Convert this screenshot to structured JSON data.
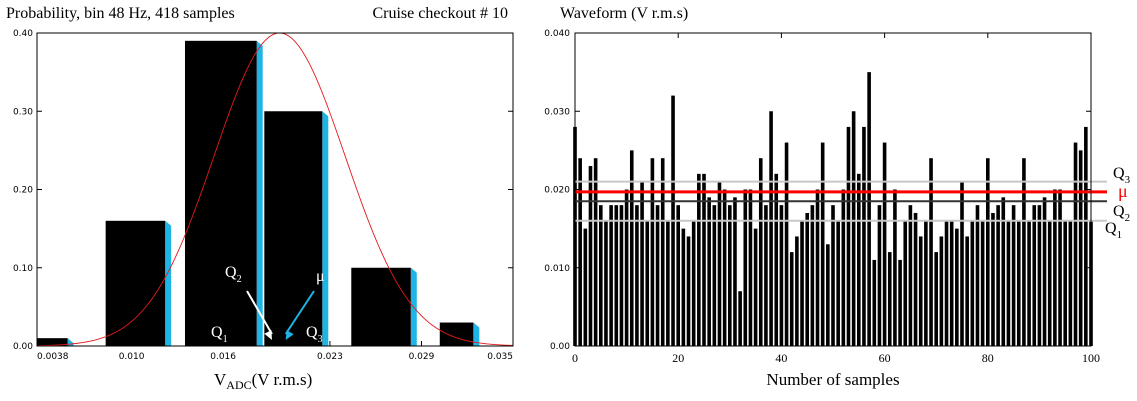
{
  "chart_data": [
    {
      "type": "bar",
      "title": "Probability, bin 48 Hz, 418 samples",
      "subtitle": "Cruise checkout # 10",
      "xlabel_main": "V",
      "xlabel_sub": "ADC",
      "xlabel_rest": "(V r.m.s)",
      "xlim": [
        0.0038,
        0.035
      ],
      "ylim": [
        0,
        0.4
      ],
      "x_ticks": [
        0.0038,
        0.01,
        0.016,
        0.023,
        0.029,
        0.035
      ],
      "x_tick_labels": [
        "0.0038",
        "0.010",
        "0.016",
        "0.023",
        "0.029",
        "0.035"
      ],
      "y_ticks": [
        0,
        0.1,
        0.2,
        0.3,
        0.4
      ],
      "y_tick_labels": [
        "0.00",
        "0.10",
        "0.20",
        "0.30",
        "0.40"
      ],
      "bar_color": "#000000",
      "shadow_color": "#1eb4e6",
      "curve_color": "#e41a1c",
      "bars": [
        {
          "x0": 0.0038,
          "x1": 0.0058,
          "value": 0.01
        },
        {
          "x0": 0.0083,
          "x1": 0.0122,
          "value": 0.16
        },
        {
          "x0": 0.0135,
          "x1": 0.0182,
          "value": 0.39
        },
        {
          "x0": 0.0187,
          "x1": 0.0225,
          "value": 0.3
        },
        {
          "x0": 0.0244,
          "x1": 0.0283,
          "value": 0.1
        },
        {
          "x0": 0.0302,
          "x1": 0.0324,
          "value": 0.03
        }
      ],
      "gaussian": {
        "mean": 0.0197,
        "sigma": 0.0043,
        "peak": 0.4
      },
      "annotations": {
        "q2": {
          "main": "Q",
          "sub": "2"
        },
        "mu": "μ",
        "q1": {
          "main": "Q",
          "sub": "1"
        },
        "q3": {
          "main": "Q",
          "sub": "3"
        }
      },
      "markers": {
        "q2_x": 0.0192,
        "mu_x": 0.0201,
        "q2_arrow_color": "#ffffff",
        "mu_arrow_color": "#1eb4e6"
      }
    },
    {
      "type": "bar",
      "title": "Waveform (V r.m.s)",
      "xlabel": "Number of samples",
      "xlim": [
        0,
        100
      ],
      "ylim": [
        0,
        0.04
      ],
      "x_ticks": [
        0,
        20,
        40,
        60,
        80,
        100
      ],
      "x_tick_labels": [
        "0",
        "20",
        "40",
        "60",
        "80",
        "100"
      ],
      "y_ticks": [
        0,
        0.01,
        0.02,
        0.03,
        0.04
      ],
      "y_tick_labels": [
        "0.00",
        "0.010",
        "0.020",
        "0.030",
        "0.040"
      ],
      "bar_color": "#000000",
      "values": [
        0.028,
        0.024,
        0.015,
        0.023,
        0.024,
        0.018,
        0.016,
        0.018,
        0.018,
        0.018,
        0.02,
        0.025,
        0.018,
        0.021,
        0.016,
        0.024,
        0.018,
        0.024,
        0.016,
        0.032,
        0.018,
        0.015,
        0.014,
        0.016,
        0.022,
        0.022,
        0.019,
        0.018,
        0.021,
        0.02,
        0.018,
        0.019,
        0.007,
        0.02,
        0.02,
        0.015,
        0.024,
        0.018,
        0.03,
        0.022,
        0.018,
        0.026,
        0.012,
        0.014,
        0.016,
        0.017,
        0.018,
        0.02,
        0.026,
        0.013,
        0.018,
        0.016,
        0.02,
        0.028,
        0.03,
        0.022,
        0.028,
        0.035,
        0.011,
        0.018,
        0.026,
        0.012,
        0.02,
        0.011,
        0.016,
        0.018,
        0.017,
        0.014,
        0.016,
        0.024,
        0.012,
        0.014,
        0.016,
        0.016,
        0.015,
        0.021,
        0.014,
        0.016,
        0.018,
        0.016,
        0.024,
        0.017,
        0.018,
        0.019,
        0.016,
        0.018,
        0.016,
        0.024,
        0.016,
        0.018,
        0.018,
        0.019,
        0.016,
        0.02,
        0.02,
        0.016,
        0.016,
        0.026,
        0.025,
        0.028,
        0.016
      ],
      "reference_lines": [
        {
          "name": "Q3",
          "value": 0.021,
          "color": "#c8c8c8"
        },
        {
          "name": "μ",
          "value": 0.0197,
          "color": "#ff0000"
        },
        {
          "name": "Q2",
          "value": 0.0185,
          "color": "#333333"
        },
        {
          "name": "Q1",
          "value": 0.016,
          "color": "#c8c8c8"
        }
      ],
      "labels": {
        "q3": {
          "main": "Q",
          "sub": "3"
        },
        "mu": "μ",
        "q2": {
          "main": "Q",
          "sub": "2"
        },
        "q1": {
          "main": "Q",
          "sub": "1"
        }
      }
    }
  ]
}
